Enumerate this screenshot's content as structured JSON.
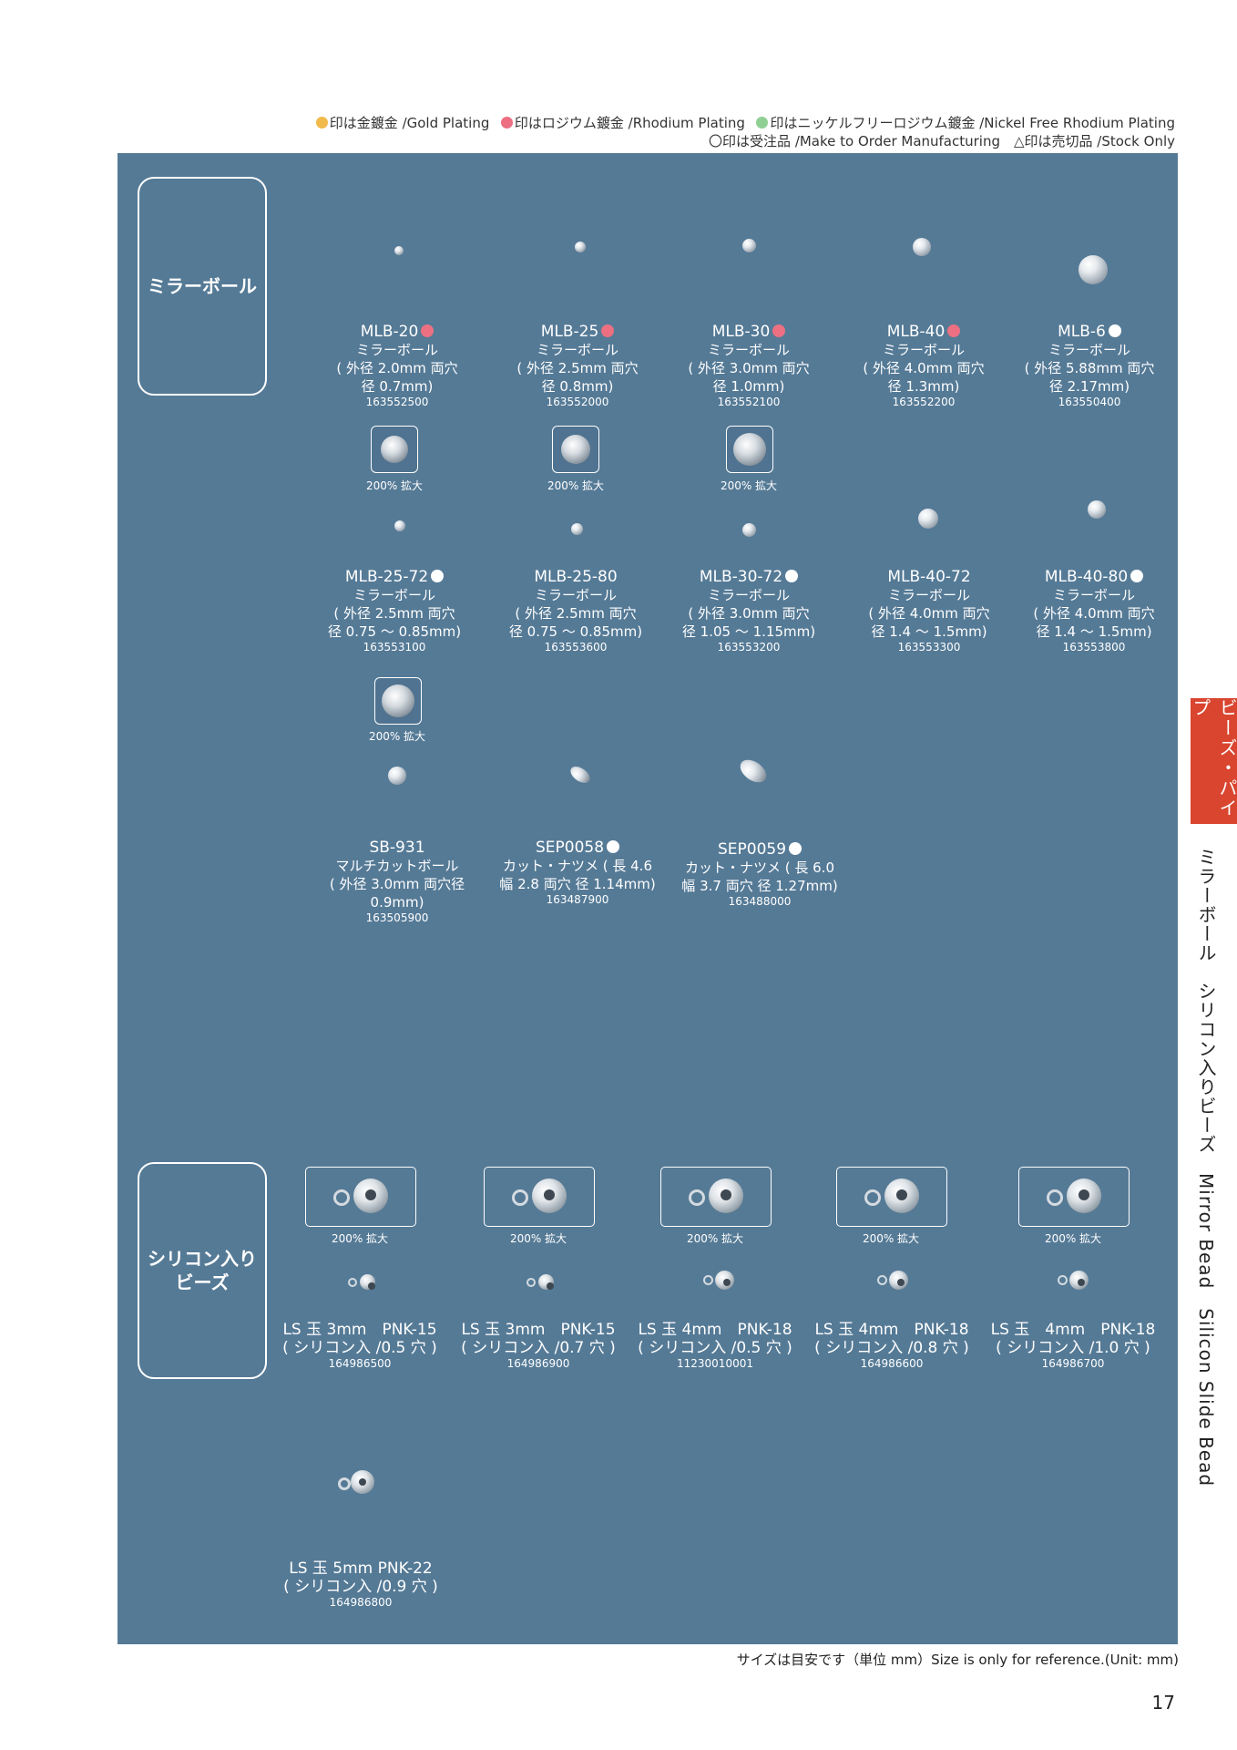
{
  "legend": {
    "line1": [
      {
        "color": "#f2b94b",
        "text": "印は金鍍金 /Gold Plating"
      },
      {
        "color": "#ec7082",
        "text": "印はロジウム鍍金 /Rhodium Plating"
      },
      {
        "color": "#8fcf93",
        "text": "印はニッケルフリーロジウム鍍金 /Nickel Free Rhodium Plating"
      }
    ],
    "line2": "〇印は受注品 /Make to Order Manufacturing　△印は売切品 /Stock Only"
  },
  "categories": {
    "mirror": "ミラーボール",
    "silicon_l1": "シリコン入り",
    "silicon_l2": "ビーズ"
  },
  "zoom_label": "200% 拡大",
  "mirror_row1": [
    {
      "code": "MLB-20",
      "mark": "pink",
      "l1": "ミラーボール",
      "l2": "( 外径 2.0mm 両穴",
      "l3": "径 0.7mm)",
      "num": "163552500"
    },
    {
      "code": "MLB-25",
      "mark": "pink",
      "l1": "ミラーボール",
      "l2": "( 外径 2.5mm 両穴",
      "l3": "径 0.8mm)",
      "num": "163552000"
    },
    {
      "code": "MLB-30",
      "mark": "pink",
      "l1": "ミラーボール",
      "l2": "( 外径 3.0mm 両穴",
      "l3": "径 1.0mm)",
      "num": "163552100"
    },
    {
      "code": "MLB-40",
      "mark": "pink",
      "l1": "ミラーボール",
      "l2": "( 外径 4.0mm 両穴",
      "l3": "径 1.3mm)",
      "num": "163552200"
    },
    {
      "code": "MLB-6",
      "mark": "white",
      "l1": "ミラーボール",
      "l2": "( 外径 5.88mm 両穴",
      "l3": "径 2.17mm)",
      "num": "163550400"
    }
  ],
  "mirror_row2": [
    {
      "code": "MLB-25-72",
      "mark": "white",
      "l1": "ミラーボール",
      "l2": "( 外径 2.5mm 両穴",
      "l3": "径 0.75 ～ 0.85mm)",
      "num": "163553100"
    },
    {
      "code": "MLB-25-80",
      "mark": "",
      "l1": "ミラーボール",
      "l2": "( 外径 2.5mm 両穴",
      "l3": "径 0.75 ～ 0.85mm)",
      "num": "163553600"
    },
    {
      "code": "MLB-30-72",
      "mark": "white",
      "l1": "ミラーボール",
      "l2": "( 外径 3.0mm 両穴",
      "l3": "径 1.05 ～ 1.15mm)",
      "num": "163553200"
    },
    {
      "code": "MLB-40-72",
      "mark": "",
      "l1": "ミラーボール",
      "l2": "( 外径 4.0mm 両穴",
      "l3": "径 1.4 ～ 1.5mm)",
      "num": "163553300"
    },
    {
      "code": "MLB-40-80",
      "mark": "white",
      "l1": "ミラーボール",
      "l2": "( 外径 4.0mm 両穴",
      "l3": "径 1.4 ～ 1.5mm)",
      "num": "163553800"
    }
  ],
  "mirror_row3": [
    {
      "code": "SB-931",
      "mark": "",
      "l1": "マルチカットボール",
      "l2": "( 外径 3.0mm 両穴径 0.9mm)",
      "num": "163505900"
    },
    {
      "code": "SEP0058",
      "mark": "white",
      "l1": "カット・ナツメ ( 長 4.6",
      "l2": "幅 2.8 両穴 径 1.14mm)",
      "num": "163487900"
    },
    {
      "code": "SEP0059",
      "mark": "white",
      "l1": "カット・ナツメ ( 長 6.0",
      "l2": "幅 3.7 両穴 径 1.27mm)",
      "num": "163488000"
    }
  ],
  "silicon": [
    {
      "l1": "LS 玉 3mm　PNK-15",
      "l2": "( シリコン入 /0.5 穴 )",
      "num": "164986500"
    },
    {
      "l1": "LS 玉 3mm　PNK-15",
      "l2": "( シリコン入 /0.7 穴 )",
      "num": "164986900"
    },
    {
      "l1": "LS 玉 4mm　PNK-18",
      "l2": "( シリコン入 /0.5 穴 )",
      "num": "11230010001"
    },
    {
      "l1": "LS 玉 4mm　PNK-18",
      "l2": "( シリコン入 /0.8 穴 )",
      "num": "164986600"
    },
    {
      "l1": "LS 玉　4mm　PNK-18",
      "l2": "( シリコン入 /1.0 穴 )",
      "num": "164986700"
    },
    {
      "l1": "LS 玉 5mm PNK-22",
      "l2": "( シリコン入 /0.9 穴 )",
      "num": "164986800"
    }
  ],
  "side_tab": "ビーズ・パイプ",
  "side_text": "ミラーボール　シリコン入りビーズ　Mirror Bead　Silicon Slide Bead",
  "footer": "サイズは目安です（単位 mm）Size is only for reference.(Unit: mm)",
  "page_number": "17"
}
